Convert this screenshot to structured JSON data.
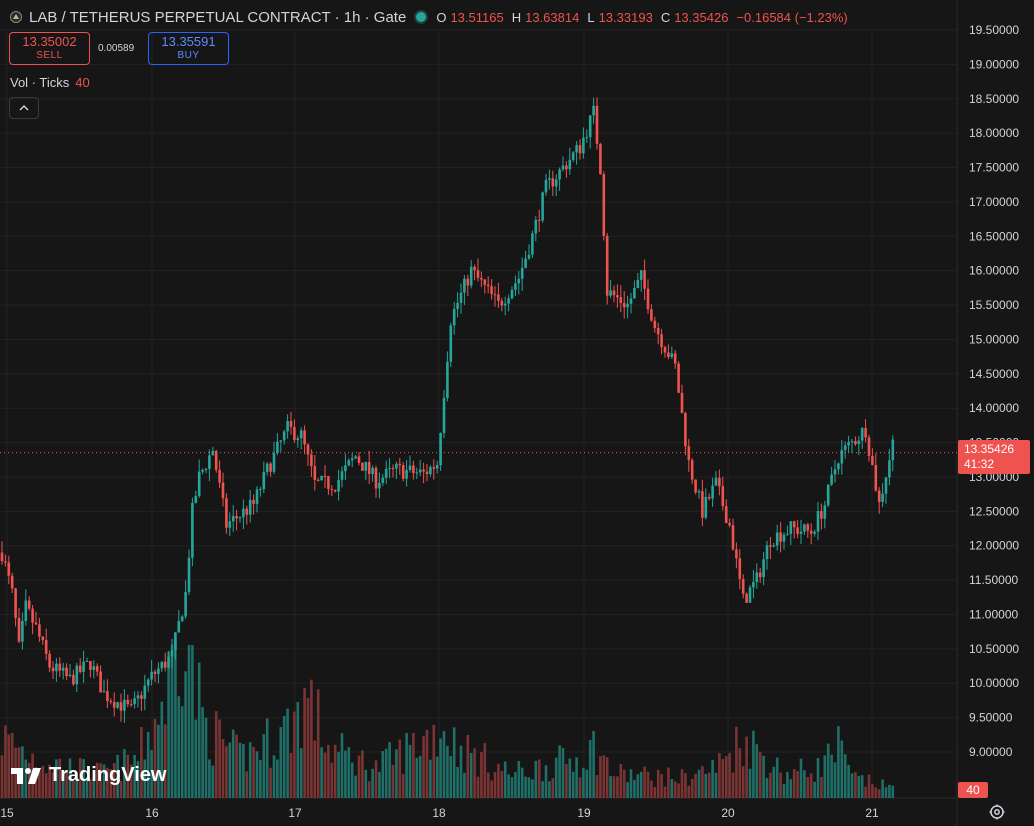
{
  "header": {
    "title": "LAB / TETHERUS PERPETUAL CONTRACT · 1h · Gate",
    "o_label": "O",
    "o_value": "13.51165",
    "h_label": "H",
    "h_value": "13.63814",
    "l_label": "L",
    "l_value": "13.33193",
    "c_label": "C",
    "c_value": "13.35426",
    "change": "−0.16584 (−1.23%)"
  },
  "trade": {
    "sell_price": "13.35002",
    "sell_label": "SELL",
    "spread": "0.00589",
    "buy_price": "13.35591",
    "buy_label": "BUY"
  },
  "volume": {
    "label": "Vol · Ticks",
    "value": "40"
  },
  "collapse_icon": "chevron-up-icon",
  "watermark": "TradingView",
  "price_label": {
    "price": "13.35426",
    "countdown": "41:32"
  },
  "volume_label": "40",
  "colors": {
    "up": "#26a69a",
    "down": "#ef5350",
    "up_vol": "#1f6f68",
    "down_vol": "#7a3434",
    "bg": "#161616",
    "grid": "#222222"
  },
  "chart_data": {
    "type": "candlestick",
    "y_ticks": [
      "19.50000",
      "19.00000",
      "18.50000",
      "18.00000",
      "17.50000",
      "17.00000",
      "16.50000",
      "16.00000",
      "15.50000",
      "15.00000",
      "14.50000",
      "14.00000",
      "13.50000",
      "13.00000",
      "12.50000",
      "12.00000",
      "11.50000",
      "11.00000",
      "10.50000",
      "10.00000",
      "9.50000",
      "9.00000"
    ],
    "y_range": [
      8.93,
      19.55
    ],
    "x_labels": [
      "15",
      "16",
      "17",
      "18",
      "19",
      "20",
      "21"
    ],
    "current_price": 13.35426,
    "anchors": [
      [
        0,
        11.9
      ],
      [
        3,
        11.3
      ],
      [
        5,
        10.5
      ],
      [
        7,
        11.1
      ],
      [
        10,
        10.8
      ],
      [
        14,
        10.25
      ],
      [
        20,
        10.05
      ],
      [
        26,
        10.3
      ],
      [
        30,
        9.85
      ],
      [
        38,
        9.6
      ],
      [
        44,
        10.1
      ],
      [
        50,
        10.4
      ],
      [
        54,
        11.3
      ],
      [
        56,
        12.5
      ],
      [
        58,
        13.0
      ],
      [
        62,
        13.4
      ],
      [
        66,
        12.3
      ],
      [
        74,
        12.6
      ],
      [
        78,
        13.1
      ],
      [
        84,
        13.7
      ],
      [
        88,
        13.6
      ],
      [
        92,
        12.9
      ],
      [
        98,
        12.9
      ],
      [
        104,
        13.3
      ],
      [
        110,
        12.95
      ],
      [
        116,
        13.1
      ],
      [
        124,
        13.05
      ],
      [
        128,
        13.2
      ],
      [
        132,
        15.3
      ],
      [
        138,
        16.0
      ],
      [
        146,
        15.5
      ],
      [
        152,
        15.9
      ],
      [
        156,
        16.5
      ],
      [
        160,
        17.2
      ],
      [
        170,
        17.8
      ],
      [
        174,
        18.3
      ],
      [
        176,
        17.5
      ],
      [
        178,
        15.7
      ],
      [
        184,
        15.5
      ],
      [
        188,
        15.9
      ],
      [
        192,
        15.2
      ],
      [
        198,
        14.6
      ],
      [
        202,
        13.2
      ],
      [
        206,
        12.5
      ],
      [
        210,
        12.9
      ],
      [
        214,
        12.3
      ],
      [
        218,
        11.2
      ],
      [
        222,
        11.5
      ],
      [
        226,
        12.1
      ],
      [
        232,
        12.25
      ],
      [
        238,
        12.2
      ],
      [
        242,
        12.6
      ],
      [
        246,
        13.3
      ],
      [
        250,
        13.5
      ],
      [
        254,
        13.7
      ],
      [
        258,
        12.6
      ],
      [
        262,
        13.5
      ]
    ],
    "volume_shape": [
      [
        0,
        0.3
      ],
      [
        10,
        0.2
      ],
      [
        20,
        0.15
      ],
      [
        30,
        0.12
      ],
      [
        40,
        0.2
      ],
      [
        48,
        0.5
      ],
      [
        52,
        0.8
      ],
      [
        54,
        1.0
      ],
      [
        56,
        0.6
      ],
      [
        60,
        0.35
      ],
      [
        70,
        0.2
      ],
      [
        80,
        0.3
      ],
      [
        84,
        0.35
      ],
      [
        90,
        0.5
      ],
      [
        96,
        0.25
      ],
      [
        110,
        0.15
      ],
      [
        130,
        0.35
      ],
      [
        134,
        0.25
      ],
      [
        150,
        0.12
      ],
      [
        170,
        0.2
      ],
      [
        174,
        0.25
      ],
      [
        180,
        0.12
      ],
      [
        200,
        0.1
      ],
      [
        210,
        0.15
      ],
      [
        218,
        0.3
      ],
      [
        230,
        0.12
      ],
      [
        240,
        0.15
      ],
      [
        246,
        0.25
      ],
      [
        250,
        0.1
      ],
      [
        262,
        0.05
      ]
    ],
    "volume_max_value": 40
  }
}
